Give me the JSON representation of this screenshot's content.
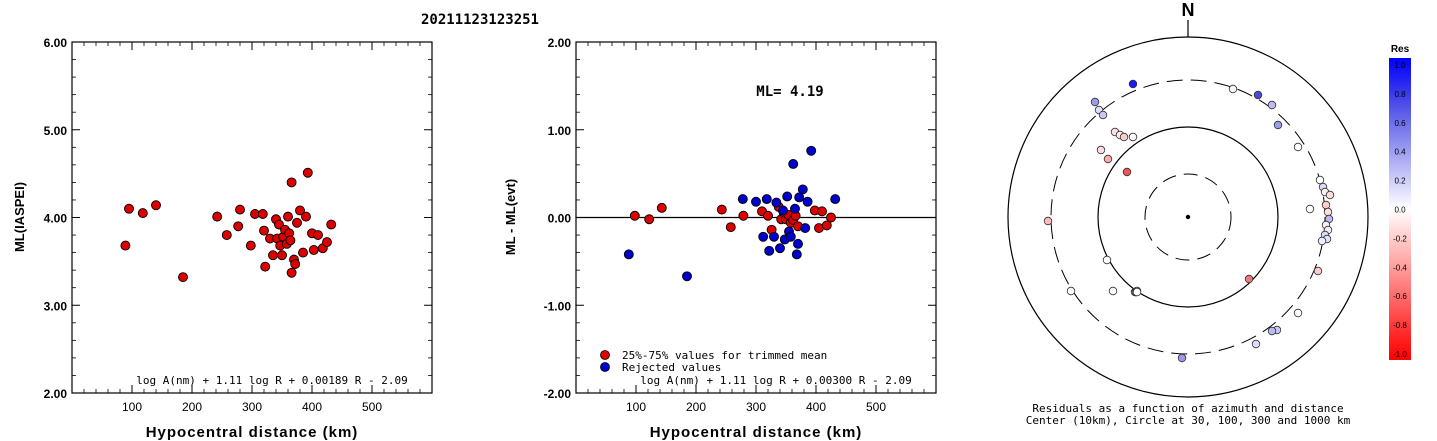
{
  "page_title": "20211123123251",
  "chart_data": [
    {
      "type": "scatter",
      "ylabel": "ML(IASPEI)",
      "xlabel": "Hypocentral distance (km)",
      "xlim": [
        0,
        600
      ],
      "ylim": [
        2.0,
        6.0
      ],
      "x_ticks": [
        100,
        200,
        300,
        400,
        500
      ],
      "y_ticks": [
        "2.00",
        "3.00",
        "4.00",
        "5.00",
        "6.00"
      ],
      "formula": "log A(nm) + 1.11 log R + 0.00189 R - 2.09",
      "marker_color": "#dd0000",
      "points": [
        [
          89,
          3.68
        ],
        [
          95,
          4.1
        ],
        [
          118,
          4.05
        ],
        [
          140,
          4.14
        ],
        [
          185,
          3.32
        ],
        [
          242,
          4.01
        ],
        [
          258,
          3.8
        ],
        [
          277,
          3.9
        ],
        [
          280,
          4.09
        ],
        [
          298,
          3.68
        ],
        [
          305,
          4.04
        ],
        [
          318,
          4.04
        ],
        [
          320,
          3.85
        ],
        [
          322,
          3.44
        ],
        [
          330,
          3.76
        ],
        [
          335,
          3.57
        ],
        [
          340,
          3.98
        ],
        [
          342,
          3.76
        ],
        [
          345,
          3.92
        ],
        [
          347,
          3.68
        ],
        [
          350,
          3.57
        ],
        [
          352,
          3.78
        ],
        [
          355,
          3.86
        ],
        [
          358,
          3.7
        ],
        [
          360,
          4.01
        ],
        [
          362,
          3.82
        ],
        [
          364,
          3.74
        ],
        [
          366,
          4.4
        ],
        [
          366,
          3.37
        ],
        [
          370,
          3.52
        ],
        [
          372,
          3.47
        ],
        [
          375,
          3.94
        ],
        [
          380,
          4.08
        ],
        [
          385,
          3.6
        ],
        [
          390,
          4.01
        ],
        [
          393,
          4.51
        ],
        [
          400,
          3.82
        ],
        [
          403,
          3.63
        ],
        [
          410,
          3.8
        ],
        [
          418,
          3.65
        ],
        [
          425,
          3.72
        ],
        [
          432,
          3.92
        ]
      ]
    },
    {
      "type": "scatter",
      "ylabel": "ML - ML(evt)",
      "xlabel": "Hypocentral distance (km)",
      "xlim": [
        0,
        600
      ],
      "ylim": [
        -2.0,
        2.0
      ],
      "x_ticks": [
        100,
        200,
        300,
        400,
        500
      ],
      "y_ticks": [
        "-2.00",
        "-1.00",
        "0.00",
        "1.00",
        "2.00"
      ],
      "annotation": "ML= 4.19",
      "formula": "log A(nm) + 1.11 log R + 0.00300 R - 2.09",
      "legend": [
        {
          "label": "25%-75% values for trimmed mean",
          "color": "#dd0000"
        },
        {
          "label": "Rejected values",
          "color": "#0000cc"
        }
      ],
      "series": [
        {
          "color": "#dd0000",
          "points": [
            [
              98,
              0.02
            ],
            [
              122,
              -0.02
            ],
            [
              143,
              0.11
            ],
            [
              243,
              0.09
            ],
            [
              258,
              -0.11
            ],
            [
              279,
              0.02
            ],
            [
              310,
              0.07
            ],
            [
              320,
              0.02
            ],
            [
              326,
              -0.14
            ],
            [
              338,
              0.12
            ],
            [
              342,
              -0.02
            ],
            [
              346,
              0.06
            ],
            [
              350,
              -0.02
            ],
            [
              354,
              0.03
            ],
            [
              358,
              -0.06
            ],
            [
              362,
              -0.03
            ],
            [
              366,
              0.02
            ],
            [
              370,
              -0.1
            ],
            [
              398,
              0.08
            ],
            [
              405,
              -0.12
            ],
            [
              410,
              0.07
            ],
            [
              418,
              -0.09
            ],
            [
              425,
              0.0
            ]
          ]
        },
        {
          "color": "#0000cc",
          "points": [
            [
              88,
              -0.42
            ],
            [
              185,
              -0.67
            ],
            [
              278,
              0.21
            ],
            [
              300,
              0.18
            ],
            [
              312,
              -0.22
            ],
            [
              318,
              0.21
            ],
            [
              322,
              -0.38
            ],
            [
              330,
              -0.22
            ],
            [
              334,
              0.17
            ],
            [
              340,
              -0.35
            ],
            [
              345,
              0.08
            ],
            [
              348,
              -0.25
            ],
            [
              352,
              0.24
            ],
            [
              355,
              -0.16
            ],
            [
              358,
              -0.22
            ],
            [
              362,
              0.61
            ],
            [
              365,
              0.1
            ],
            [
              368,
              -0.42
            ],
            [
              370,
              -0.3
            ],
            [
              372,
              0.23
            ],
            [
              378,
              0.32
            ],
            [
              382,
              -0.12
            ],
            [
              386,
              0.18
            ],
            [
              392,
              0.76
            ],
            [
              432,
              0.21
            ]
          ]
        }
      ]
    },
    {
      "type": "polar-scatter",
      "north_label": "N",
      "caption_line1": "Residuals as a function of azimuth and distance",
      "caption_line2": "Center (10km), Circle at 30, 100, 300 and 1000 km",
      "points": [
        {
          "dx": -55,
          "dy": -133,
          "c": "#1a1aff"
        },
        {
          "dx": 45,
          "dy": -128,
          "c": "#f4f4ff"
        },
        {
          "dx": 70,
          "dy": -122,
          "c": "#4a4ad6"
        },
        {
          "dx": -93,
          "dy": -115,
          "c": "#9a9aee"
        },
        {
          "dx": 84,
          "dy": -112,
          "c": "#bcbcf4"
        },
        {
          "dx": -89,
          "dy": -107,
          "c": "#e0e0ff"
        },
        {
          "dx": -85,
          "dy": -102,
          "c": "#c8c8f8"
        },
        {
          "dx": 90,
          "dy": -92,
          "c": "#9a9aee"
        },
        {
          "dx": -73,
          "dy": -85,
          "c": "#ffe0e0"
        },
        {
          "dx": -68,
          "dy": -82,
          "c": "#ffeeee"
        },
        {
          "dx": -64,
          "dy": -80,
          "c": "#ffcccc"
        },
        {
          "dx": -55,
          "dy": -80,
          "c": "#ffffff"
        },
        {
          "dx": 110,
          "dy": -70,
          "c": "#ffffff"
        },
        {
          "dx": -87,
          "dy": -67,
          "c": "#ffdddd"
        },
        {
          "dx": -80,
          "dy": -58,
          "c": "#ffaaaa"
        },
        {
          "dx": -61,
          "dy": -45,
          "c": "#ee5555"
        },
        {
          "dx": 132,
          "dy": -37,
          "c": "#ffffff"
        },
        {
          "dx": 135,
          "dy": -30,
          "c": "#dcdcfa"
        },
        {
          "dx": 137,
          "dy": -25,
          "c": "#ffeeee"
        },
        {
          "dx": 142,
          "dy": -22,
          "c": "#ffdddd"
        },
        {
          "dx": 122,
          "dy": -8,
          "c": "#ffffff"
        },
        {
          "dx": 138,
          "dy": -12,
          "c": "#ffcccc"
        },
        {
          "dx": 140,
          "dy": -5,
          "c": "#ffdddd"
        },
        {
          "dx": 141,
          "dy": 2,
          "c": "#b8b8f2"
        },
        {
          "dx": 138,
          "dy": 8,
          "c": "#ffeeee"
        },
        {
          "dx": 140,
          "dy": 13,
          "c": "#eeeeff"
        },
        {
          "dx": 137,
          "dy": 18,
          "c": "#ddddf8"
        },
        {
          "dx": 139,
          "dy": 22,
          "c": "#e0e0ff"
        },
        {
          "dx": 134,
          "dy": 24,
          "c": "#eeeeff"
        },
        {
          "dx": -140,
          "dy": 4,
          "c": "#ffbbbb"
        },
        {
          "dx": -81,
          "dy": 43,
          "c": "#ffffff"
        },
        {
          "dx": 130,
          "dy": 54,
          "c": "#ffcccc"
        },
        {
          "dx": 61,
          "dy": 62,
          "c": "#ee7777"
        },
        {
          "dx": -75,
          "dy": 74,
          "c": "#ffffff"
        },
        {
          "dx": -53,
          "dy": 75,
          "c": "#ffffff"
        },
        {
          "dx": -52,
          "dy": 75,
          "c": "#ffffff"
        },
        {
          "dx": -52,
          "dy": 75,
          "c": "#ffffff"
        },
        {
          "dx": -51,
          "dy": 74,
          "c": "#ffffff"
        },
        {
          "dx": -117,
          "dy": 74,
          "c": "#ffffff"
        },
        {
          "dx": 110,
          "dy": 96,
          "c": "#ffffff"
        },
        {
          "dx": -51,
          "dy": 75,
          "c": "#ffffff"
        },
        {
          "dx": 89,
          "dy": 113,
          "c": "#c8c8f8"
        },
        {
          "dx": 84,
          "dy": 114,
          "c": "#bbbbf4"
        },
        {
          "dx": 68,
          "dy": 127,
          "c": "#dcdcfa"
        },
        {
          "dx": -6,
          "dy": 141,
          "c": "#9a9aee"
        }
      ]
    }
  ],
  "colorbar": {
    "title": "Res",
    "labels": [
      "1.0",
      "0.8",
      "0.6",
      "0.4",
      "0.2",
      "0.0",
      "-0.2",
      "-0.4",
      "-0.6",
      "-0.8",
      "-1.0"
    ],
    "stops": [
      "#0000ff",
      "#2828f0",
      "#5555e8",
      "#8080ee",
      "#aaaaf4",
      "#d4d4fa",
      "#ffffff",
      "#ffd4d4",
      "#ffaaaa",
      "#ff8080",
      "#ff5555",
      "#ff2828",
      "#ff0000"
    ]
  }
}
